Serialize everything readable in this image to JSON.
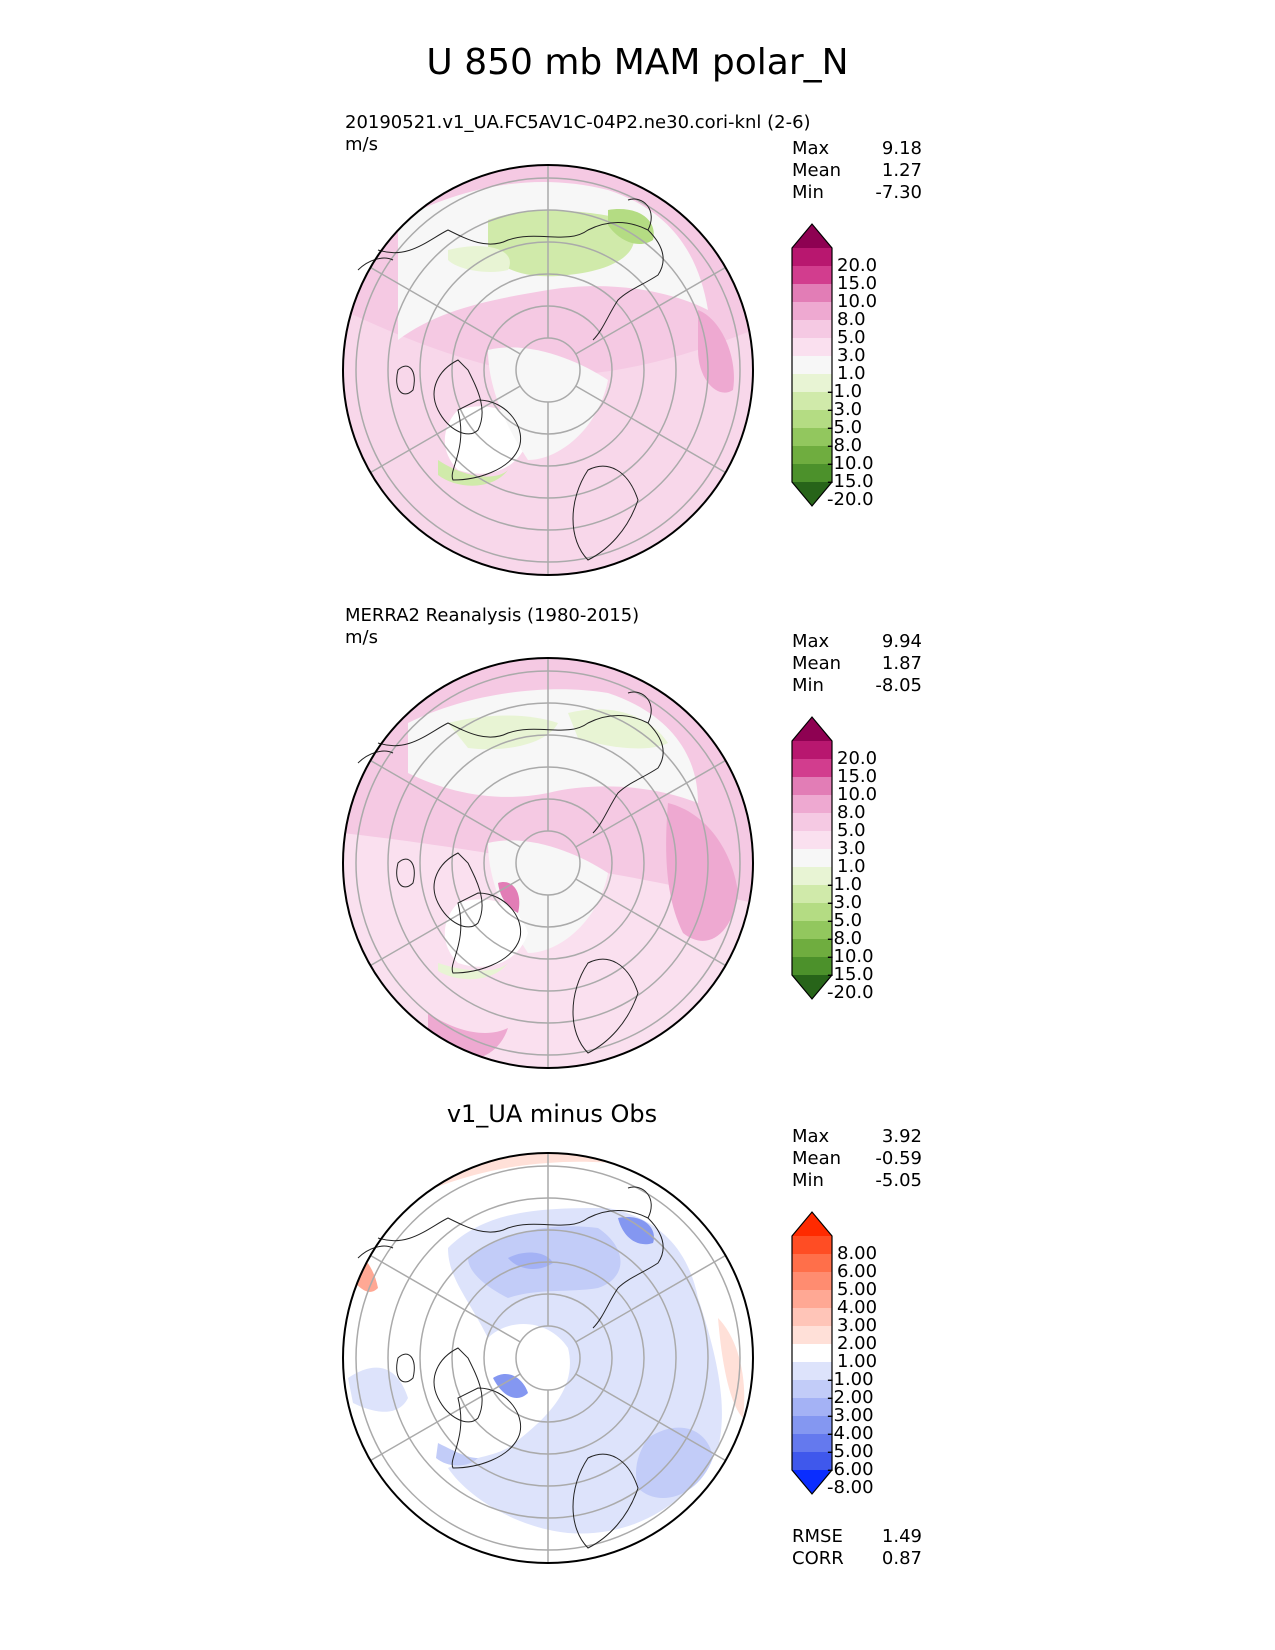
{
  "title": "U 850 mb MAM polar_N",
  "panels": [
    {
      "label": "20190521.v1_UA.FC5AV1C-04P2.ne30.cori-knl (2-6)",
      "units": "m/s",
      "stats": {
        "max_label": "Max",
        "max": "9.18",
        "mean_label": "Mean",
        "mean": "1.27",
        "min_label": "Min",
        "min": "-7.30"
      }
    },
    {
      "label": "MERRA2 Reanalysis (1980-2015)",
      "units": "m/s",
      "stats": {
        "max_label": "Max",
        "max": "9.94",
        "mean_label": "Mean",
        "mean": "1.87",
        "min_label": "Min",
        "min": "-8.05"
      }
    },
    {
      "center_title": "v1_UA minus Obs",
      "stats": {
        "max_label": "Max",
        "max": "3.92",
        "mean_label": "Mean",
        "mean": "-0.59",
        "min_label": "Min",
        "min": "-5.05"
      },
      "metrics": {
        "rmse_label": "RMSE",
        "rmse": "1.49",
        "corr_label": "CORR",
        "corr": "0.87"
      }
    }
  ],
  "colorbars": {
    "wind": {
      "levels": [
        "20.0",
        "15.0",
        "10.0",
        "8.0",
        "5.0",
        "3.0",
        "1.0",
        "-1.0",
        "-3.0",
        "-5.0",
        "-8.0",
        "-10.0",
        "-15.0",
        "-20.0"
      ],
      "colors": [
        "#8e0152",
        "#b8176f",
        "#d23d8e",
        "#e27db6",
        "#eea9d1",
        "#f5c9e3",
        "#fae0ef",
        "#f7f7f7",
        "#e8f4d4",
        "#d0eaaa",
        "#b4dc83",
        "#92c75e",
        "#6fad3f",
        "#4c912b",
        "#276419"
      ]
    },
    "diff": {
      "levels": [
        "8.00",
        "6.00",
        "5.00",
        "4.00",
        "3.00",
        "2.00",
        "1.00",
        "-1.00",
        "-2.00",
        "-3.00",
        "-4.00",
        "-5.00",
        "-6.00",
        "-8.00"
      ],
      "colors": [
        "#ff2a00",
        "#ff4d24",
        "#ff6f4a",
        "#ff8c70",
        "#ffa894",
        "#ffc5b8",
        "#ffe0d8",
        "#ffffff",
        "#dde3fb",
        "#c2ccf8",
        "#a4b2f5",
        "#8497f1",
        "#6479ee",
        "#3f58ec",
        "#0a2dff"
      ]
    }
  },
  "chart_data": {
    "type": "heatmap",
    "title": "U 850 mb MAM polar_N",
    "projection": "north polar stereographic",
    "fields": [
      {
        "name": "20190521.v1_UA.FC5AV1C-04P2.ne30.cori-knl (2-6)",
        "units": "m/s",
        "max": 9.18,
        "mean": 1.27,
        "min": -7.3
      },
      {
        "name": "MERRA2 Reanalysis (1980-2015)",
        "units": "m/s",
        "max": 9.94,
        "mean": 1.87,
        "min": -8.05
      },
      {
        "name": "v1_UA minus Obs",
        "max": 3.92,
        "mean": -0.59,
        "min": -5.05,
        "rmse": 1.49,
        "corr": 0.87
      }
    ],
    "colorbar_levels_wind": [
      -20,
      -15,
      -10,
      -8,
      -5,
      -3,
      -1,
      1,
      3,
      5,
      8,
      10,
      15,
      20
    ],
    "colorbar_levels_diff": [
      -8,
      -6,
      -5,
      -4,
      -3,
      -2,
      -1,
      1,
      2,
      3,
      4,
      5,
      6,
      8
    ]
  }
}
